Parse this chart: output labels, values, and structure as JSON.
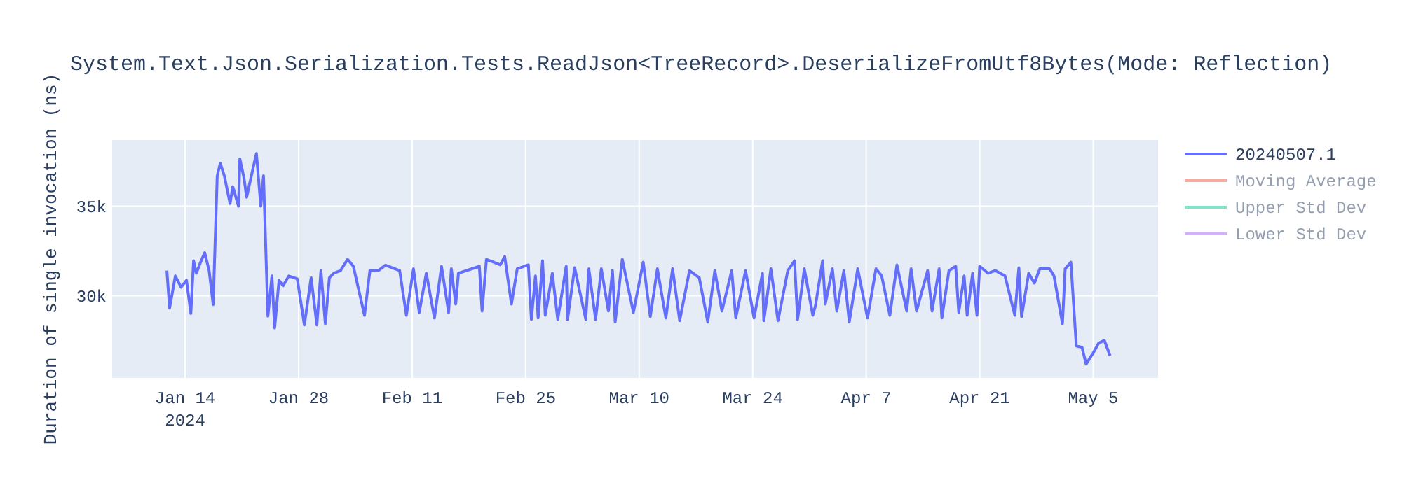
{
  "chart_data": {
    "type": "line",
    "title": "System.Text.Json.Serialization.Tests.ReadJson<TreeRecord>.DeserializeFromUtf8Bytes(Mode: Reflection)",
    "ylabel": "Duration of single invocation (ns)",
    "xlim": [
      "2024-01-05",
      "2024-05-13"
    ],
    "xticks": [
      {
        "value": "2024-01-14",
        "label": "Jan 14\n2024"
      },
      {
        "value": "2024-01-28",
        "label": "Jan 28"
      },
      {
        "value": "2024-02-11",
        "label": "Feb 11"
      },
      {
        "value": "2024-02-25",
        "label": "Feb 25"
      },
      {
        "value": "2024-03-10",
        "label": "Mar 10"
      },
      {
        "value": "2024-03-24",
        "label": "Mar 24"
      },
      {
        "value": "2024-04-07",
        "label": "Apr 7"
      },
      {
        "value": "2024-04-21",
        "label": "Apr 21"
      },
      {
        "value": "2024-05-05",
        "label": "May 5"
      }
    ],
    "ylim": [
      25400,
      38700
    ],
    "yticks": [
      {
        "value": 30000,
        "label": "30k"
      },
      {
        "value": 35000,
        "label": "35k"
      }
    ],
    "grid": true,
    "legend": "top right",
    "line_style": "solid",
    "marker": "none",
    "x": [
      "2024-01-11T18:00",
      "2024-01-12T02:00",
      "2024-01-12T19:00",
      "2024-01-13T12:00",
      "2024-01-14T04:00",
      "2024-01-14T17:00",
      "2024-01-15T01:00",
      "2024-01-15T09:00",
      "2024-01-15T22:00",
      "2024-01-16T10:00",
      "2024-01-16T23:00",
      "2024-01-17T11:00",
      "2024-01-17T23:00",
      "2024-01-18T08:00",
      "2024-01-18T20:00",
      "2024-01-19T13:00",
      "2024-01-19T21:00",
      "2024-01-20T14:00",
      "2024-01-20T18:00",
      "2024-01-21T06:00",
      "2024-01-21T14:00",
      "2024-01-22T07:00",
      "2024-01-22T19:00",
      "2024-01-23T08:00",
      "2024-01-23T16:00",
      "2024-01-24T05:00",
      "2024-01-24T17:00",
      "2024-01-25T01:00",
      "2024-01-25T14:00",
      "2024-01-26T02:00",
      "2024-01-26T19:00",
      "2024-01-27T20:00",
      "2024-01-28T17:00",
      "2024-01-29T13:00",
      "2024-01-30T06:00",
      "2024-01-30T18:00",
      "2024-01-31T07:00",
      "2024-01-31T19:00",
      "2024-02-01T08:00",
      "2024-02-02T04:00",
      "2024-02-03T01:00",
      "2024-02-03T18:00",
      "2024-02-05T03:00",
      "2024-02-05T19:00",
      "2024-02-06T20:00",
      "2024-02-07T17:00",
      "2024-02-09T11:00",
      "2024-02-10T07:00",
      "2024-02-11T04:00",
      "2024-02-11T21:00",
      "2024-02-12T18:00",
      "2024-02-13T18:00",
      "2024-02-14T15:00",
      "2024-02-15T12:00",
      "2024-02-15T20:00",
      "2024-02-16T09:00",
      "2024-02-16T17:00",
      "2024-02-19T07:00",
      "2024-02-19T15:00",
      "2024-02-20T04:00",
      "2024-02-21T21:00",
      "2024-02-22T10:00",
      "2024-02-23T06:00",
      "2024-02-23T23:00",
      "2024-02-25T08:00",
      "2024-02-25T17:00",
      "2024-02-26T05:00",
      "2024-02-26T13:00",
      "2024-02-27T02:00",
      "2024-02-27T10:00",
      "2024-02-28T07:00",
      "2024-02-28T23:00",
      "2024-03-01T00:00",
      "2024-03-01T04:00",
      "2024-03-02T01:00",
      "2024-03-03T10:00",
      "2024-03-03T19:00",
      "2024-03-04T15:00",
      "2024-03-05T08:00",
      "2024-03-06T05:00",
      "2024-03-06T17:00",
      "2024-03-07T01:00",
      "2024-03-07T22:00",
      "2024-03-09T07:00",
      "2024-03-10T12:00",
      "2024-03-11T09:00",
      "2024-03-12T06:00",
      "2024-03-13T07:00",
      "2024-03-14T03:00",
      "2024-03-15T00:00",
      "2024-03-16T05:00",
      "2024-03-17T10:00",
      "2024-03-18T11:00",
      "2024-03-19T08:00",
      "2024-03-20T05:00",
      "2024-03-21T10:00",
      "2024-03-21T22:00",
      "2024-03-23T03:00",
      "2024-03-24T04:00",
      "2024-03-25T05:00",
      "2024-03-25T09:00",
      "2024-03-26T06:00",
      "2024-03-27T03:00",
      "2024-03-28T08:00",
      "2024-03-29T04:00",
      "2024-03-29T13:00",
      "2024-03-30T09:00",
      "2024-03-31T10:00",
      "2024-03-31T18:00",
      "2024-04-01T15:00",
      "2024-04-01T23:00",
      "2024-04-02T20:00",
      "2024-04-03T09:00",
      "2024-04-04T06:00",
      "2024-04-04T22:00",
      "2024-04-05T23:00",
      "2024-04-07T04:00",
      "2024-04-08T05:00",
      "2024-04-08T22:00",
      "2024-04-09T22:00",
      "2024-04-10T19:00",
      "2024-04-12T00:00",
      "2024-04-12T13:00",
      "2024-04-13T05:00",
      "2024-04-14T14:00",
      "2024-04-15T03:00",
      "2024-04-16T00:00",
      "2024-04-16T08:00",
      "2024-04-17T05:00",
      "2024-04-18T01:00",
      "2024-04-18T10:00",
      "2024-04-19T02:00",
      "2024-04-19T11:00",
      "2024-04-20T03:00",
      "2024-04-20T16:00",
      "2024-04-21T00:00",
      "2024-04-22T01:00",
      "2024-04-22T22:00",
      "2024-04-24T03:00",
      "2024-04-25T08:00",
      "2024-04-25T20:00",
      "2024-04-26T04:00",
      "2024-04-27T01:00",
      "2024-04-27T18:00",
      "2024-04-28T10:00",
      "2024-04-29T15:00",
      "2024-04-30T04:00",
      "2024-05-01T05:00",
      "2024-05-01T13:00",
      "2024-05-02T06:00",
      "2024-05-02T22:00",
      "2024-05-03T15:00",
      "2024-05-04T03:00",
      "2024-05-05T00:00",
      "2024-05-05T16:00",
      "2024-05-06T09:00",
      "2024-05-07T02:00"
    ],
    "series": [
      {
        "name": "20240507.1",
        "color": "#636efa",
        "values": [
          31400,
          29300,
          31100,
          30470,
          30860,
          29000,
          31950,
          31250,
          31880,
          32400,
          31400,
          29500,
          36700,
          37400,
          36700,
          35150,
          36100,
          35000,
          37650,
          36600,
          35500,
          36950,
          37950,
          35000,
          36700,
          28850,
          31100,
          28200,
          30860,
          30550,
          31100,
          30940,
          28360,
          31000,
          28360,
          31400,
          28440,
          31000,
          31250,
          31400,
          32030,
          31640,
          28900,
          31400,
          31400,
          31700,
          31400,
          28900,
          31500,
          29060,
          31250,
          28750,
          31640,
          29060,
          31500,
          29530,
          31250,
          31640,
          29140,
          32030,
          31720,
          32190,
          29530,
          31500,
          31720,
          28670,
          31100,
          28750,
          31950,
          28900,
          31250,
          28670,
          31640,
          28670,
          31560,
          28670,
          31500,
          28670,
          31500,
          29140,
          31400,
          28520,
          32030,
          29060,
          31870,
          28830,
          31500,
          28750,
          31500,
          28600,
          31400,
          31000,
          28520,
          31400,
          29140,
          31400,
          28750,
          31400,
          28750,
          31250,
          28600,
          31500,
          28600,
          31400,
          31950,
          28670,
          31500,
          28900,
          29450,
          31950,
          29530,
          31500,
          29140,
          31400,
          28520,
          31500,
          28750,
          31500,
          31100,
          28900,
          31720,
          29140,
          31500,
          29140,
          31400,
          29140,
          31500,
          28750,
          31400,
          31640,
          29060,
          31100,
          28900,
          31250,
          28900,
          31640,
          31250,
          31400,
          31100,
          28900,
          31560,
          28830,
          31250,
          30700,
          31500,
          31500,
          31100,
          28440,
          31500,
          31870,
          27190,
          27110,
          26170,
          26800,
          27340,
          27500,
          26640
        ]
      },
      {
        "name": "Moving Average",
        "color": "#ef553b",
        "values": [
          null,
          null,
          null,
          null,
          null,
          null,
          null,
          null,
          null,
          null,
          null,
          null,
          null,
          null,
          null,
          null,
          null,
          null,
          null,
          null,
          null,
          null,
          null,
          null,
          null,
          null,
          null,
          null,
          null,
          null,
          null,
          null,
          null,
          null,
          null,
          null,
          null,
          null,
          null,
          null,
          null,
          null,
          null,
          null,
          null,
          null,
          null,
          null,
          null,
          null,
          null,
          null,
          null,
          null,
          null,
          null,
          null,
          null,
          null,
          null,
          null,
          null,
          null,
          null,
          null,
          null,
          null,
          null,
          null,
          null,
          null,
          null,
          null,
          null,
          null,
          null,
          null,
          null,
          null,
          null,
          null,
          null,
          null,
          null,
          null,
          null,
          null,
          null,
          null,
          null,
          null,
          null,
          null,
          null,
          null,
          null,
          null,
          null,
          null,
          null,
          null,
          null,
          null,
          null,
          null,
          null,
          null,
          null,
          null,
          null,
          null,
          null,
          null,
          null,
          null,
          null,
          null,
          null,
          null,
          null,
          null,
          null,
          null,
          null,
          null,
          null,
          null,
          null,
          null,
          null,
          null,
          null,
          null,
          null,
          null,
          null,
          null,
          null,
          null,
          null,
          null,
          null,
          null,
          null,
          null,
          null,
          null,
          null,
          null,
          null,
          null,
          null,
          null,
          null,
          null,
          null,
          null
        ]
      },
      {
        "name": "Upper Std Dev",
        "color": "#00cc96",
        "values": [
          null,
          null,
          null,
          null,
          null,
          null,
          null,
          null,
          null,
          null,
          null,
          null,
          null,
          null,
          null,
          null,
          null,
          null,
          null,
          null,
          null,
          null,
          null,
          null,
          null,
          null,
          null,
          null,
          null,
          null,
          null,
          null,
          null,
          null,
          null,
          null,
          null,
          null,
          null,
          null,
          null,
          null,
          null,
          null,
          null,
          null,
          null,
          null,
          null,
          null,
          null,
          null,
          null,
          null,
          null,
          null,
          null,
          null,
          null,
          null,
          null,
          null,
          null,
          null,
          null,
          null,
          null,
          null,
          null,
          null,
          null,
          null,
          null,
          null,
          null,
          null,
          null,
          null,
          null,
          null,
          null,
          null,
          null,
          null,
          null,
          null,
          null,
          null,
          null,
          null,
          null,
          null,
          null,
          null,
          null,
          null,
          null,
          null,
          null,
          null,
          null,
          null,
          null,
          null,
          null,
          null,
          null,
          null,
          null,
          null,
          null,
          null,
          null,
          null,
          null,
          null,
          null,
          null,
          null,
          null,
          null,
          null,
          null,
          null,
          null,
          null,
          null,
          null,
          null,
          null,
          null,
          null,
          null,
          null,
          null,
          null,
          null,
          null,
          null,
          null,
          null,
          null,
          null,
          null,
          null,
          null,
          null,
          null,
          null,
          null,
          null,
          null,
          null,
          null,
          null,
          null,
          null
        ]
      },
      {
        "name": "Lower Std Dev",
        "color": "#ab63fa",
        "values": [
          null,
          null,
          null,
          null,
          null,
          null,
          null,
          null,
          null,
          null,
          null,
          null,
          null,
          null,
          null,
          null,
          null,
          null,
          null,
          null,
          null,
          null,
          null,
          null,
          null,
          null,
          null,
          null,
          null,
          null,
          null,
          null,
          null,
          null,
          null,
          null,
          null,
          null,
          null,
          null,
          null,
          null,
          null,
          null,
          null,
          null,
          null,
          null,
          null,
          null,
          null,
          null,
          null,
          null,
          null,
          null,
          null,
          null,
          null,
          null,
          null,
          null,
          null,
          null,
          null,
          null,
          null,
          null,
          null,
          null,
          null,
          null,
          null,
          null,
          null,
          null,
          null,
          null,
          null,
          null,
          null,
          null,
          null,
          null,
          null,
          null,
          null,
          null,
          null,
          null,
          null,
          null,
          null,
          null,
          null,
          null,
          null,
          null,
          null,
          null,
          null,
          null,
          null,
          null,
          null,
          null,
          null,
          null,
          null,
          null,
          null,
          null,
          null,
          null,
          null,
          null,
          null,
          null,
          null,
          null,
          null,
          null,
          null,
          null,
          null,
          null,
          null,
          null,
          null,
          null,
          null,
          null,
          null,
          null,
          null,
          null,
          null,
          null,
          null,
          null,
          null,
          null,
          null,
          null,
          null,
          null,
          null,
          null,
          null,
          null,
          null,
          null,
          null,
          null,
          null,
          null,
          null
        ]
      }
    ]
  }
}
